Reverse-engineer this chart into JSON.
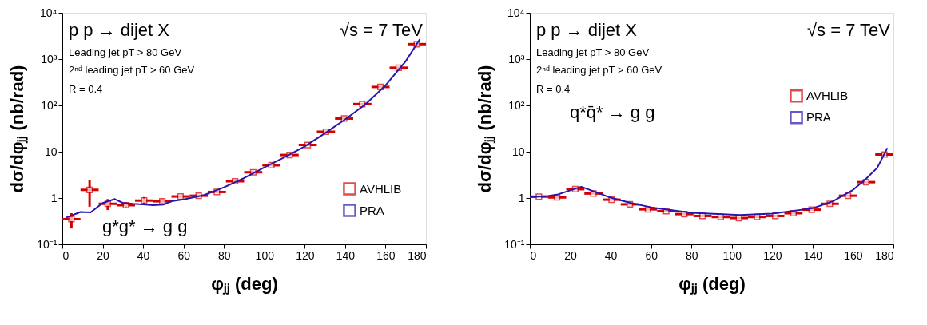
{
  "chart_data": [
    {
      "type": "line",
      "xlabel": "φⱼⱼ    (deg)",
      "ylabel": "dσ/dφⱼⱼ    (nb/rad)",
      "log": true,
      "grid": false,
      "legend": "bottom right",
      "xlim": [
        0,
        180
      ],
      "xticks": [
        0,
        20,
        40,
        60,
        80,
        100,
        120,
        140,
        160,
        180
      ],
      "ylim": [
        0.1,
        10000
      ],
      "yticks": [
        {
          "value": 0.1,
          "label": "10⁻¹"
        },
        1,
        10,
        {
          "value": 100,
          "label": "10²"
        },
        {
          "value": 1000,
          "label": "10³"
        },
        {
          "value": 10000,
          "label": "10⁴"
        }
      ],
      "annotations": [
        "p p → dijet X",
        "√s = 7 TeV",
        "Leading jet pT > 80 GeV",
        "2ⁿᵈ leading jet pT > 60 GeV",
        "R = 0.4",
        "g*g* → g g"
      ],
      "series": [
        {
          "name": "AVHLIB",
          "type": "scatter",
          "marker": "square",
          "color": "#d40000",
          "x": [
            4.5,
            13.5,
            22.5,
            31.5,
            40.5,
            49.5,
            58.5,
            67.5,
            76.5,
            85.5,
            94.5,
            103.5,
            112.5,
            121.5,
            130.5,
            139.5,
            148.5,
            157.5,
            166.5,
            175.5
          ],
          "values": [
            0.35,
            1.5,
            0.75,
            0.7,
            0.88,
            0.85,
            1.08,
            1.12,
            1.35,
            2.3,
            3.6,
            5.1,
            8.5,
            14,
            27,
            52,
            107,
            250,
            650,
            2100
          ],
          "errors": [
            [
              0.22,
              0.47
            ],
            [
              0.65,
              2.4
            ],
            [
              0.55,
              0.95
            ],
            [
              0.6,
              0.8
            ],
            [
              0.72,
              1.05
            ],
            [
              0.75,
              0.95
            ],
            null,
            null,
            null,
            null,
            null,
            null,
            null,
            null,
            null,
            null,
            null,
            null,
            null,
            null
          ],
          "xerrors": [
            4.5,
            4.5,
            4.5,
            4.5,
            4.5,
            4.5,
            4.5,
            4.5,
            4.5,
            4.5,
            4.5,
            4.5,
            4.5,
            4.5,
            4.5,
            4.5,
            4.5,
            4.5,
            4.5,
            4.5
          ]
        },
        {
          "name": "PRA",
          "line_style": "solid",
          "color": "#2a14b0",
          "x": [
            2,
            9,
            14,
            20,
            26,
            30,
            35,
            40,
            45,
            50,
            54,
            60,
            70,
            80,
            90,
            100,
            110,
            120,
            130,
            140,
            150,
            160,
            170,
            177
          ],
          "values": [
            0.38,
            0.5,
            0.49,
            0.78,
            0.95,
            0.78,
            0.75,
            0.73,
            0.7,
            0.72,
            0.85,
            0.93,
            1.15,
            1.7,
            2.7,
            4.6,
            7.6,
            13,
            25,
            50,
            105,
            270,
            900,
            2700
          ]
        }
      ]
    },
    {
      "type": "line",
      "xlabel": "φⱼⱼ    (deg)",
      "ylabel": "dσ/dφⱼⱼ    (nb/rad)",
      "log": true,
      "grid": false,
      "legend": "right",
      "xlim": [
        0,
        180
      ],
      "xticks": [
        0,
        20,
        40,
        60,
        80,
        100,
        120,
        140,
        160,
        180
      ],
      "ylim": [
        0.1,
        10000
      ],
      "yticks": [
        {
          "value": 0.1,
          "label": "10⁻¹"
        },
        1,
        10,
        {
          "value": 100,
          "label": "10²"
        },
        {
          "value": 1000,
          "label": "10³"
        },
        {
          "value": 10000,
          "label": "10⁴"
        }
      ],
      "annotations": [
        "p p → dijet X",
        "√s = 7 TeV",
        "Leading jet pT > 80 GeV",
        "2ⁿᵈ leading jet pT > 60 GeV",
        "R = 0.4",
        "q*q̄* → g g"
      ],
      "series": [
        {
          "name": "AVHLIB",
          "type": "scatter",
          "marker": "square",
          "color": "#d40000",
          "x": [
            4.5,
            13.5,
            22.5,
            31.5,
            40.5,
            49.5,
            58.5,
            67.5,
            76.5,
            85.5,
            94.5,
            103.5,
            112.5,
            121.5,
            130.5,
            139.5,
            148.5,
            157.5,
            166.5,
            175.5
          ],
          "values": [
            1.07,
            1.03,
            1.55,
            1.25,
            0.92,
            0.73,
            0.57,
            0.52,
            0.45,
            0.41,
            0.39,
            0.37,
            0.39,
            0.41,
            0.47,
            0.56,
            0.75,
            1.12,
            2.2,
            8.7
          ],
          "xerrors": [
            4.5,
            4.5,
            4.5,
            4.5,
            4.5,
            4.5,
            4.5,
            4.5,
            4.5,
            4.5,
            4.5,
            4.5,
            4.5,
            4.5,
            4.5,
            4.5,
            4.5,
            4.5,
            4.5,
            4.5
          ]
        },
        {
          "name": "PRA",
          "line_style": "solid",
          "color": "#2a14b0",
          "x": [
            0,
            9,
            14,
            25.5,
            40,
            50,
            60,
            80,
            104,
            120,
            140,
            150,
            160,
            166,
            172,
            177
          ],
          "values": [
            1.05,
            1.1,
            1.2,
            1.75,
            1.02,
            0.78,
            0.63,
            0.48,
            0.43,
            0.46,
            0.6,
            0.85,
            1.5,
            2.5,
            4.5,
            12
          ]
        }
      ]
    }
  ]
}
